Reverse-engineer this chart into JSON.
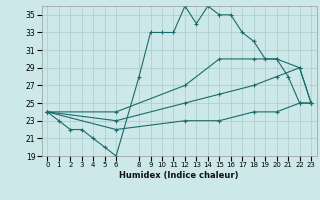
{
  "xlabel": "Humidex (Indice chaleur)",
  "xlim": [
    -0.5,
    23.5
  ],
  "ylim": [
    19,
    36
  ],
  "xticks": [
    0,
    1,
    2,
    3,
    4,
    5,
    6,
    8,
    9,
    10,
    11,
    12,
    13,
    14,
    15,
    16,
    17,
    18,
    19,
    20,
    21,
    22,
    23
  ],
  "yticks": [
    19,
    21,
    23,
    25,
    27,
    29,
    31,
    33,
    35
  ],
  "bg_color": "#cce8e8",
  "grid_color": "#aacccc",
  "line_color": "#1a6b6b",
  "lines": [
    {
      "x": [
        0,
        1,
        2,
        3,
        4,
        5,
        6,
        8,
        9,
        10,
        11,
        12,
        13,
        14,
        15,
        16,
        17,
        18,
        19,
        20,
        21,
        22,
        23
      ],
      "y": [
        24,
        23,
        22,
        22,
        21,
        20,
        19,
        28,
        33,
        33,
        33,
        36,
        34,
        36,
        35,
        35,
        33,
        32,
        30,
        30,
        28,
        25,
        25
      ]
    },
    {
      "x": [
        0,
        6,
        12,
        15,
        18,
        20,
        22,
        23
      ],
      "y": [
        24,
        24,
        27,
        30,
        30,
        30,
        29,
        25
      ]
    },
    {
      "x": [
        0,
        6,
        12,
        15,
        18,
        20,
        22,
        23
      ],
      "y": [
        24,
        23,
        25,
        26,
        27,
        28,
        29,
        25
      ]
    },
    {
      "x": [
        0,
        6,
        12,
        15,
        18,
        20,
        22,
        23
      ],
      "y": [
        24,
        22,
        23,
        23,
        24,
        24,
        25,
        25
      ]
    }
  ]
}
